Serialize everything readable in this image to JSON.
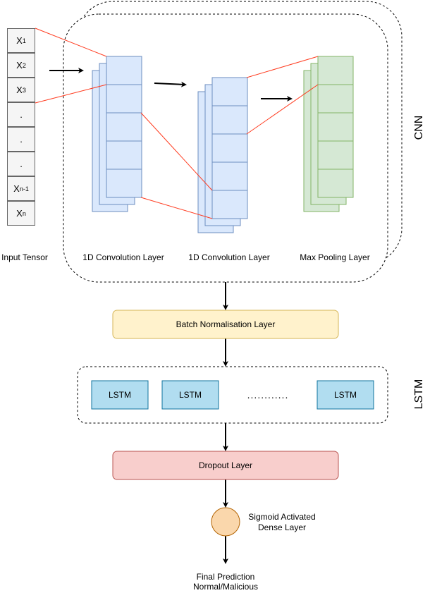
{
  "input_tensor": {
    "label": "Input Tensor",
    "cells": [
      {
        "base": "X",
        "sub": "1"
      },
      {
        "base": "X",
        "sub": "2"
      },
      {
        "base": "X",
        "sub": "3"
      },
      {
        "base": ".",
        "sub": ""
      },
      {
        "base": ".",
        "sub": ""
      },
      {
        "base": ".",
        "sub": ""
      },
      {
        "base": "X",
        "sub": "n-1"
      },
      {
        "base": "X",
        "sub": "n"
      }
    ]
  },
  "cnn": {
    "label": "CNN",
    "layers": [
      {
        "label": "1D Convolution Layer"
      },
      {
        "label": "1D Convolution Layer"
      },
      {
        "label": "Max Pooling Layer"
      }
    ]
  },
  "batch_norm": {
    "label": "Batch Normalisation Layer"
  },
  "lstm": {
    "label": "LSTM",
    "cells": [
      "LSTM",
      "LSTM",
      "LSTM"
    ],
    "ellipsis": "............"
  },
  "dropout": {
    "label": "Dropout Layer"
  },
  "dense": {
    "label_line1": "Sigmoid Activated",
    "label_line2": "Dense Layer"
  },
  "output": {
    "line1": "Final Prediction",
    "line2": "Normal/Malicious"
  },
  "colors": {
    "conv_fill": "#dae8fc",
    "conv_stroke": "#6c8ebf",
    "pool_fill": "#d5e8d4",
    "pool_stroke": "#82b366",
    "bn_fill": "#fff2cc",
    "bn_stroke": "#d6b656",
    "lstm_fill": "#b1ddf0",
    "lstm_stroke": "#10739e",
    "dropout_fill": "#f8cecc",
    "dropout_stroke": "#b85450",
    "dense_fill": "#fad7ac",
    "dense_stroke": "#b46504",
    "connector": "#ff3b1f"
  }
}
